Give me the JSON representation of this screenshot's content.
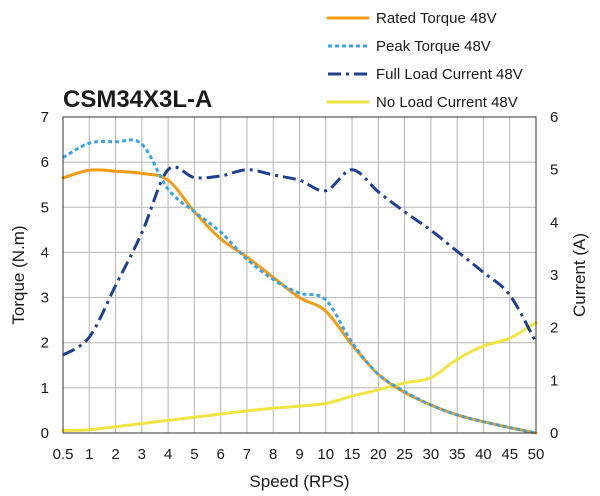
{
  "chart_data": {
    "type": "line",
    "title": "CSM34X3L-A",
    "xlabel": "Speed (RPS)",
    "ylabel": "Torque (N.m)",
    "y2label": "Current (A)",
    "x": [
      "0.5",
      "1",
      "2",
      "3",
      "4",
      "5",
      "6",
      "7",
      "8",
      "9",
      "10",
      "15",
      "20",
      "25",
      "30",
      "35",
      "40",
      "45",
      "50"
    ],
    "ylim": [
      0,
      7
    ],
    "y2lim": [
      0,
      6
    ],
    "yticks": [
      "0",
      "1",
      "2",
      "3",
      "4",
      "5",
      "6",
      "7"
    ],
    "y2ticks": [
      "0",
      "1",
      "2",
      "3",
      "4",
      "5",
      "6"
    ],
    "grid": true,
    "legend": "top-right, outside plot",
    "series": [
      {
        "name": "Rated Torque 48V",
        "axis": "left",
        "color": "#f39c12",
        "style": "solid",
        "values": [
          5.65,
          5.82,
          5.8,
          5.75,
          5.6,
          4.9,
          4.3,
          3.9,
          3.45,
          3.0,
          2.7,
          1.95,
          1.3,
          0.9,
          0.62,
          0.4,
          0.25,
          0.12,
          0.0
        ]
      },
      {
        "name": "Peak Torque 48V",
        "axis": "left",
        "color": "#3aa3e3",
        "style": "dotted",
        "values": [
          6.1,
          6.42,
          6.45,
          6.4,
          5.4,
          4.9,
          4.45,
          3.85,
          3.4,
          3.1,
          2.95,
          2.0,
          1.3,
          0.92,
          0.62,
          0.4,
          0.25,
          0.12,
          0.0
        ]
      },
      {
        "name": "Full Load Current 48V",
        "axis": "right",
        "color": "#1f3f8f",
        "style": "dashdot",
        "values": [
          1.48,
          1.82,
          2.8,
          3.8,
          5.0,
          4.85,
          4.88,
          5.0,
          4.9,
          4.8,
          4.6,
          5.0,
          4.58,
          4.2,
          3.85,
          3.45,
          3.05,
          2.62,
          1.72
        ]
      },
      {
        "name": "No Load Current 48V",
        "axis": "right",
        "color": "#f0e442",
        "style": "solid",
        "values": [
          0.05,
          0.06,
          0.12,
          0.18,
          0.24,
          0.3,
          0.36,
          0.42,
          0.47,
          0.51,
          0.56,
          0.7,
          0.82,
          0.95,
          1.05,
          1.4,
          1.65,
          1.8,
          2.1
        ]
      }
    ]
  }
}
